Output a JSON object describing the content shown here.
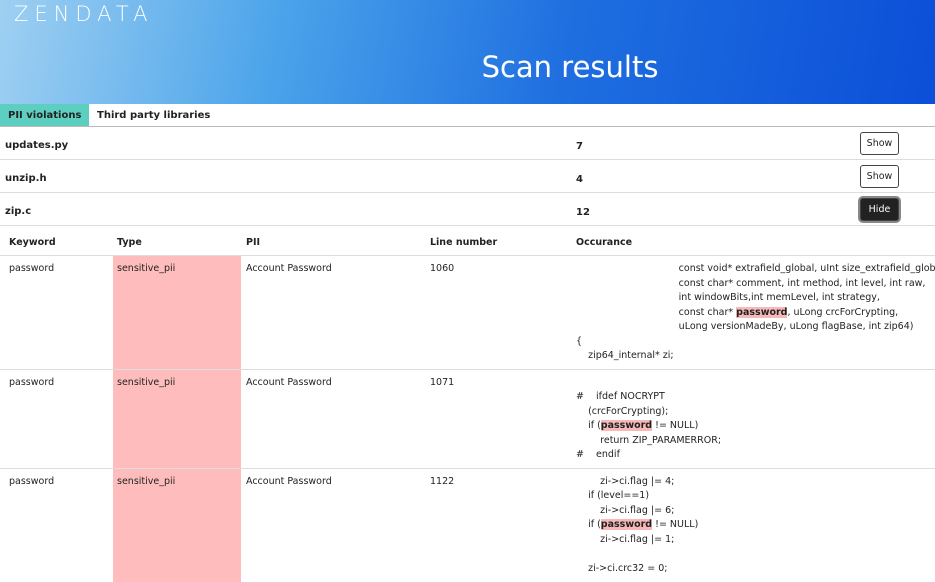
{
  "header": {
    "logo": "ZENDATA",
    "title": "Scan results"
  },
  "tabs": [
    {
      "label": "PII violations",
      "active": true
    },
    {
      "label": "Third party libraries",
      "active": false
    }
  ],
  "files": [
    {
      "name": "updates.py",
      "count": 7,
      "action": "Show"
    },
    {
      "name": "unzip.h",
      "count": 4,
      "action": "Show"
    },
    {
      "name": "zip.c",
      "count": 12,
      "action": "Hide"
    }
  ],
  "table": {
    "columns": [
      "Keyword",
      "Type",
      "PII",
      "Line number",
      "Occurance"
    ],
    "rows": [
      {
        "keyword": "password",
        "type": "sensitive_pii",
        "pii": "Account Password",
        "line": 1060,
        "occurrence": [
          [
            "                                  const void* extrafield_global, uInt size_extrafield_global,"
          ],
          [
            "                                  const char* comment, int method, int level, int raw,"
          ],
          [
            "                                  int windowBits,int memLevel, int strategy,"
          ],
          [
            "                                  const char* ",
            {
              "match": "password"
            },
            ", uLong crcForCrypting,"
          ],
          [
            "                                  uLong versionMadeBy, uLong flagBase, int zip64)"
          ],
          [
            "{"
          ],
          [
            "    zip64_internal* zi;"
          ]
        ]
      },
      {
        "keyword": "password",
        "type": "sensitive_pii",
        "pii": "Account Password",
        "line": 1071,
        "occurrence": [
          [],
          [
            "#    ifdef NOCRYPT"
          ],
          [
            "    (crcForCrypting);"
          ],
          [
            "    if (",
            {
              "match": "password"
            },
            " != NULL)"
          ],
          [
            "        return ZIP_PARAMERROR;"
          ],
          [
            "#    endif"
          ]
        ]
      },
      {
        "keyword": "password",
        "type": "sensitive_pii",
        "pii": "Account Password",
        "line": 1122,
        "occurrence": [
          [
            "        zi->ci.flag |= 4;"
          ],
          [
            "    if (level==1)"
          ],
          [
            "        zi->ci.flag |= 6;"
          ],
          [
            "    if (",
            {
              "match": "password"
            },
            " != NULL)"
          ],
          [
            "        zi->ci.flag |= 1;"
          ],
          [],
          [
            "    zi->ci.crc32 = 0;"
          ]
        ]
      }
    ]
  }
}
